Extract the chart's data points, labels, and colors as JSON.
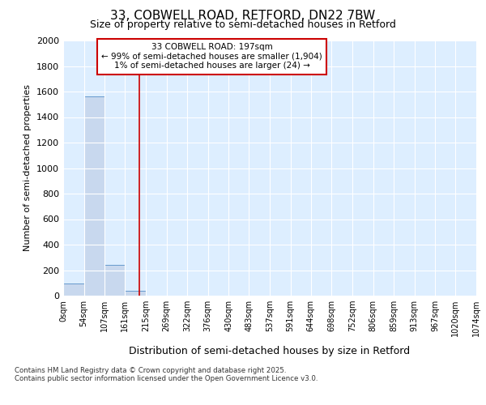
{
  "title_line1": "33, COBWELL ROAD, RETFORD, DN22 7BW",
  "title_line2": "Size of property relative to semi-detached houses in Retford",
  "xlabel": "Distribution of semi-detached houses by size in Retford",
  "ylabel": "Number of semi-detached properties",
  "footer_line1": "Contains HM Land Registry data © Crown copyright and database right 2025.",
  "footer_line2": "Contains public sector information licensed under the Open Government Licence v3.0.",
  "annotation_line1": "33 COBWELL ROAD: 197sqm",
  "annotation_line2": "← 99% of semi-detached houses are smaller (1,904)",
  "annotation_line3": "1% of semi-detached houses are larger (24) →",
  "bar_edges": [
    0,
    54,
    107,
    161,
    215,
    269,
    322,
    376,
    430,
    483,
    537,
    591,
    644,
    698,
    752,
    806,
    859,
    913,
    967,
    1020,
    1074
  ],
  "bar_heights": [
    93,
    1560,
    243,
    35,
    0,
    0,
    0,
    0,
    0,
    0,
    0,
    0,
    0,
    0,
    0,
    0,
    0,
    0,
    0,
    0
  ],
  "bar_color": "#c8d8ee",
  "bar_edge_color": "#6699cc",
  "vline_x": 197,
  "vline_color": "#cc0000",
  "ylim": [
    0,
    2000
  ],
  "yticks": [
    0,
    200,
    400,
    600,
    800,
    1000,
    1200,
    1400,
    1600,
    1800,
    2000
  ],
  "fig_bg_color": "#ffffff",
  "plot_bg_color": "#ddeeff",
  "grid_color": "#ffffff",
  "annotation_box_edge_color": "#cc0000",
  "annotation_box_bg": "#ffffff",
  "title1_fontsize": 11,
  "title2_fontsize": 9
}
